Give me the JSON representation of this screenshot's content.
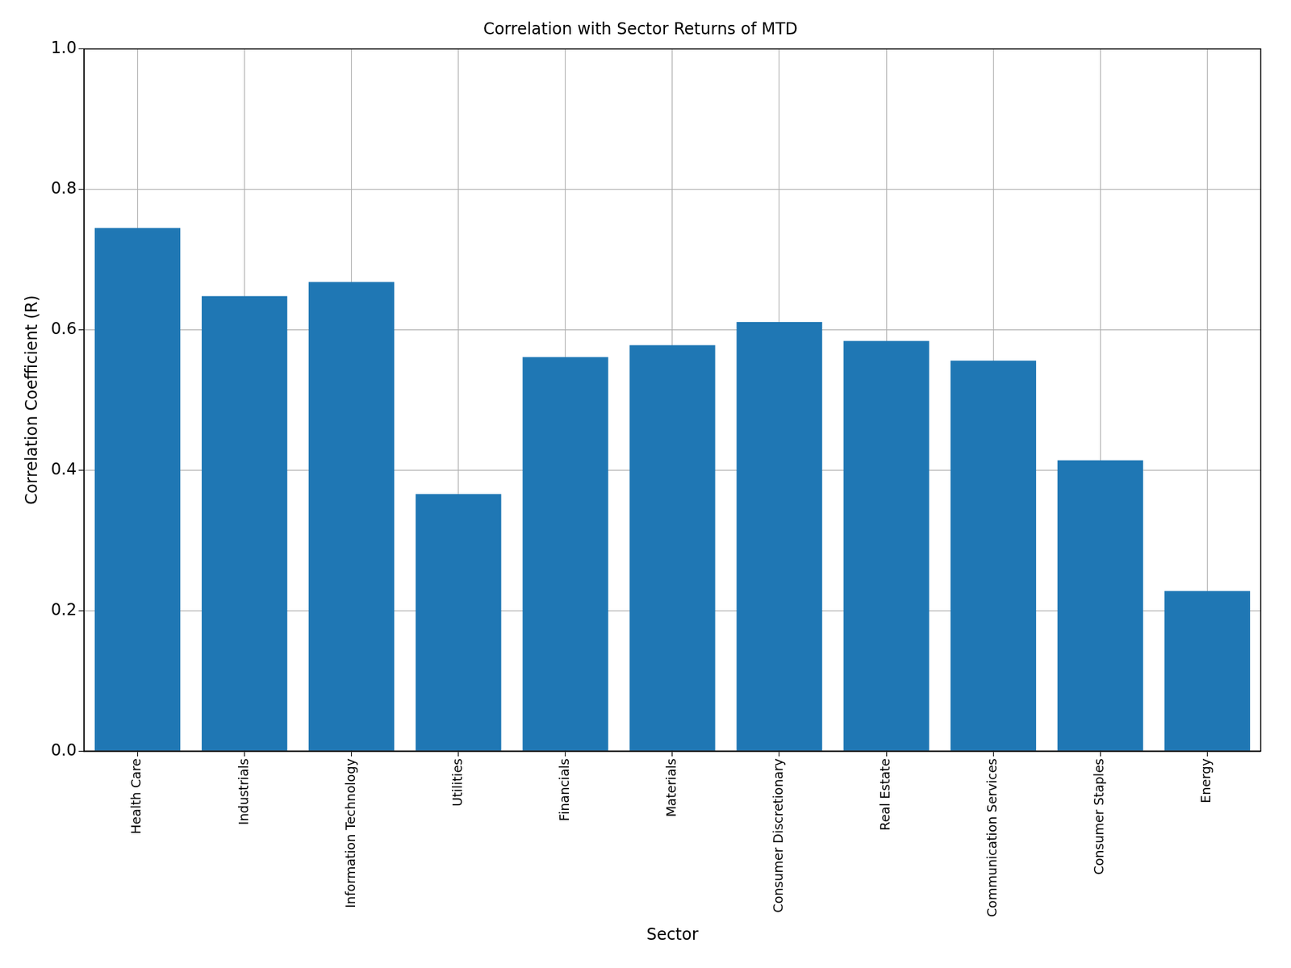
{
  "chart_data": {
    "type": "bar",
    "title": "Correlation with Sector Returns of MTD",
    "x_label": "Sector",
    "y_label": "Correlation Coefficient (R)",
    "categories": [
      "Health Care",
      "Industrials",
      "Information Technology",
      "Utilities",
      "Financials",
      "Materials",
      "Consumer Discretionary",
      "Real Estate",
      "Communication Services",
      "Consumer Staples",
      "Energy"
    ],
    "values": [
      0.745,
      0.648,
      0.668,
      0.366,
      0.561,
      0.578,
      0.611,
      0.584,
      0.556,
      0.414,
      0.228
    ],
    "color": "#1f77b4",
    "ylim": [
      0,
      1
    ],
    "yticks": [
      {
        "value": 0,
        "label": "0.0"
      },
      0.2,
      0.4,
      0.6,
      0.8,
      {
        "value": 1,
        "label": "1.0"
      }
    ],
    "grid": true
  }
}
